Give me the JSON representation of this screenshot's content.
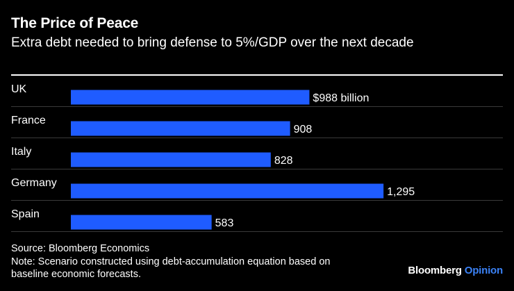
{
  "header": {
    "title": "The Price of Peace",
    "subtitle": "Extra debt needed to bring defense to 5%/GDP over the next decade"
  },
  "chart_data": {
    "type": "bar",
    "orientation": "horizontal",
    "categories": [
      "UK",
      "France",
      "Italy",
      "Germany",
      "Spain"
    ],
    "values": [
      988,
      908,
      828,
      1295,
      583
    ],
    "value_labels": [
      "$988 billion",
      "908",
      "828",
      "1,295",
      "583"
    ],
    "bar_color": "#1f5cff",
    "grid": false
  },
  "footer": {
    "source": "Source: Bloomberg Economics",
    "note_line1": "Note: Scenario constructed using debt-accumulation equation based on",
    "note_line2": "baseline economic forecasts.",
    "brand_name": "Bloomberg",
    "brand_suffix": "Opinion",
    "brand_accent": "#3b82f6"
  }
}
